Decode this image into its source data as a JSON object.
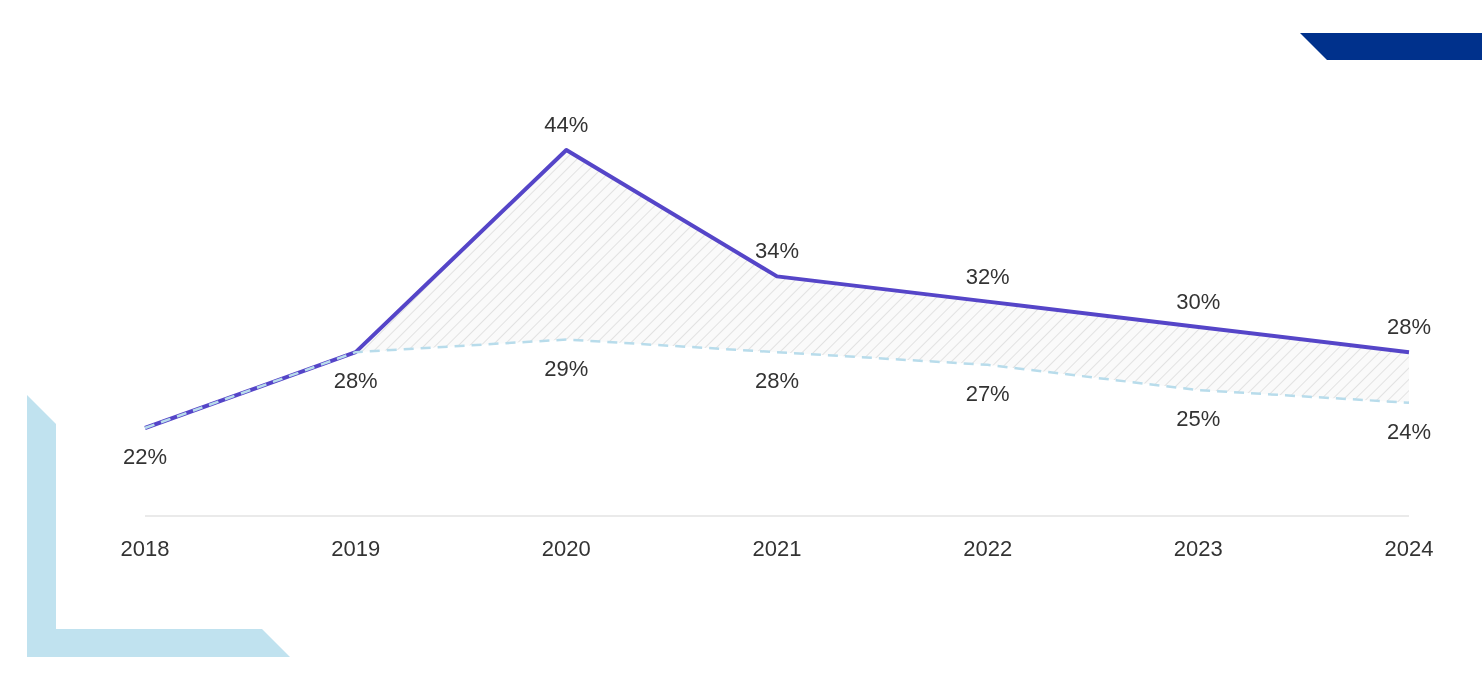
{
  "chart_data": {
    "type": "line",
    "categories": [
      "2018",
      "2019",
      "2020",
      "2021",
      "2022",
      "2023",
      "2024"
    ],
    "series": [
      {
        "color": "#5545c8",
        "line_style": "solid",
        "values": [
          22,
          28,
          44,
          34,
          32,
          30,
          28
        ],
        "value_labels": [
          null,
          null,
          "44%",
          "34%",
          "32%",
          "30%",
          "28%"
        ],
        "lower": [
          22,
          28,
          29,
          28,
          27,
          25,
          24
        ],
        "upper": [
          22,
          28,
          44,
          34,
          32,
          30,
          28
        ]
      },
      {
        "color": "#b8dceb",
        "line_style": "dashed",
        "values": [
          22,
          28,
          29,
          28,
          27,
          25,
          24
        ],
        "value_labels": [
          "22%",
          "28%",
          "29%",
          "28%",
          "27%",
          "25%",
          "24%"
        ]
      }
    ]
  }
}
